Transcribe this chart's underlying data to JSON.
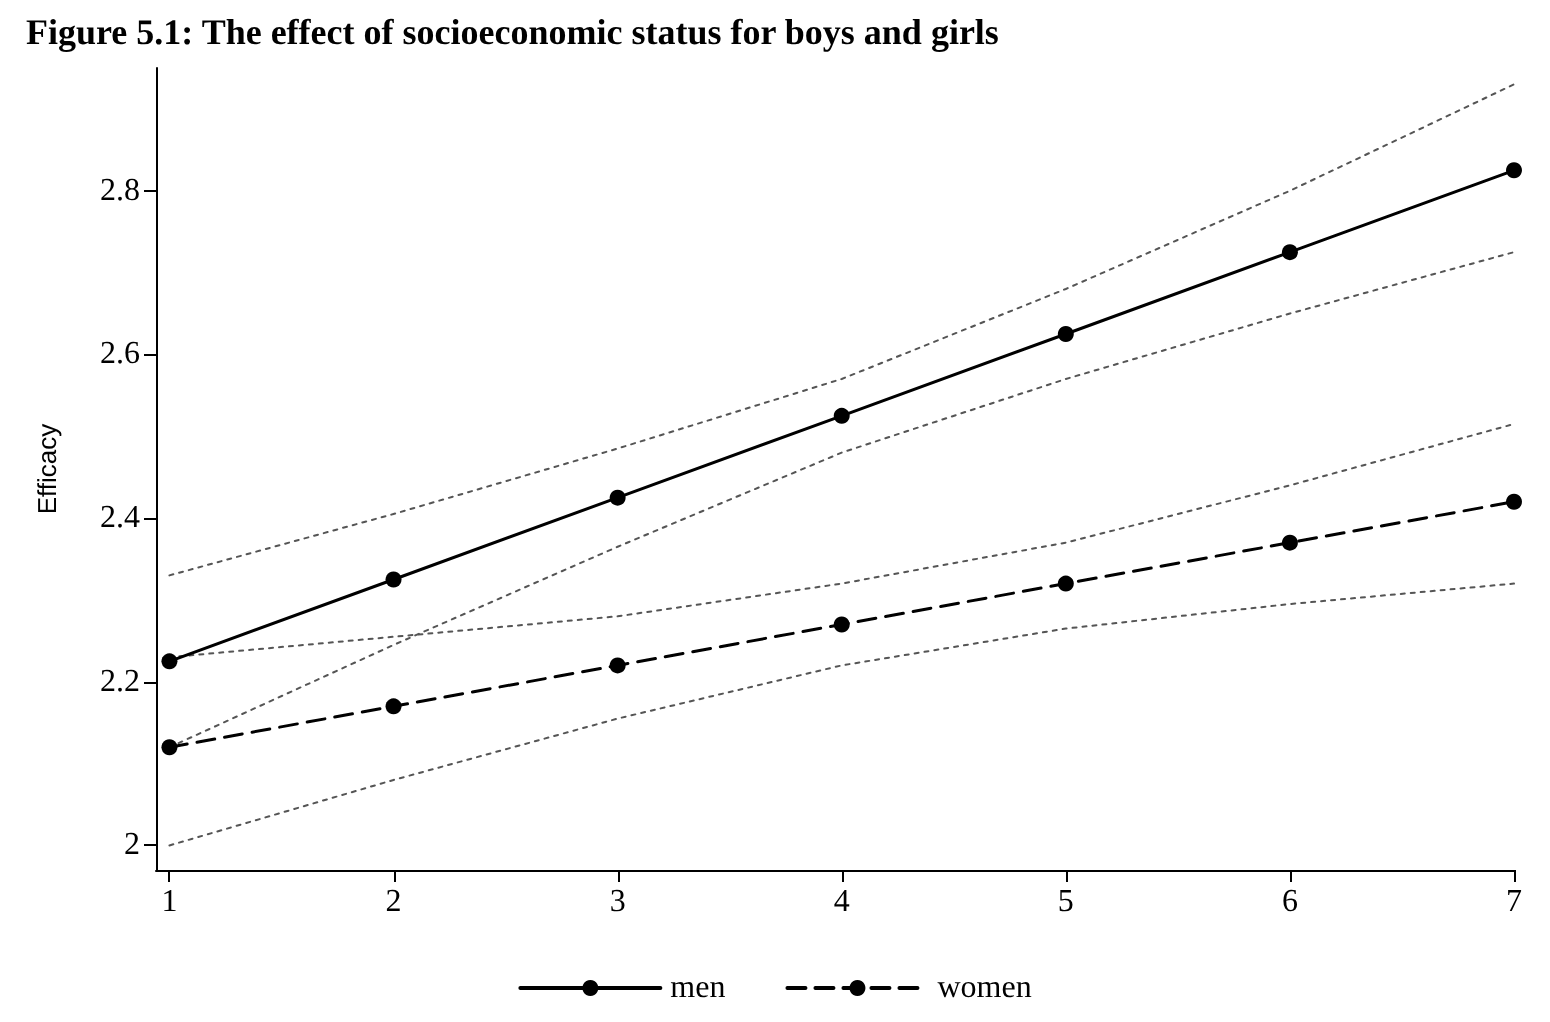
{
  "chart_data": {
    "type": "line",
    "title": "Figure 5.1: The effect of socioeconomic status for boys and girls",
    "ylabel": "Efficacy",
    "x": [
      1,
      2,
      3,
      4,
      5,
      6,
      7
    ],
    "series": [
      {
        "color": "#555555",
        "line_style": "dotted",
        "marker": "none",
        "values": [
          2.33,
          2.405,
          2.485,
          2.57,
          2.68,
          2.8,
          2.93
        ]
      },
      {
        "color": "#555555",
        "line_style": "dotted",
        "marker": "none",
        "values": [
          2.12,
          2.245,
          2.365,
          2.48,
          2.57,
          2.65,
          2.725
        ]
      },
      {
        "color": "#555555",
        "line_style": "dotted",
        "marker": "none",
        "values": [
          2.23,
          2.255,
          2.28,
          2.32,
          2.37,
          2.44,
          2.515
        ]
      },
      {
        "color": "#555555",
        "line_style": "dotted",
        "marker": "none",
        "values": [
          2.0,
          2.08,
          2.155,
          2.22,
          2.265,
          2.295,
          2.32
        ]
      },
      {
        "name": "men",
        "color": "#000000",
        "line_style": "solid",
        "values": [
          2.225,
          2.325,
          2.425,
          2.525,
          2.625,
          2.725,
          2.825
        ]
      },
      {
        "name": "women",
        "color": "#000000",
        "line_style": "dashed",
        "values": [
          2.12,
          2.17,
          2.22,
          2.27,
          2.32,
          2.37,
          2.42
        ]
      }
    ],
    "xlim": [
      0.94,
      7
    ],
    "xticks": [
      1,
      2,
      3,
      4,
      5,
      6,
      7
    ],
    "ylim": [
      1.97,
      2.95
    ],
    "yticks": [
      2,
      2.2,
      2.4,
      2.6,
      2.8
    ],
    "grid": false,
    "legend": "bottom",
    "marker": "circle"
  }
}
